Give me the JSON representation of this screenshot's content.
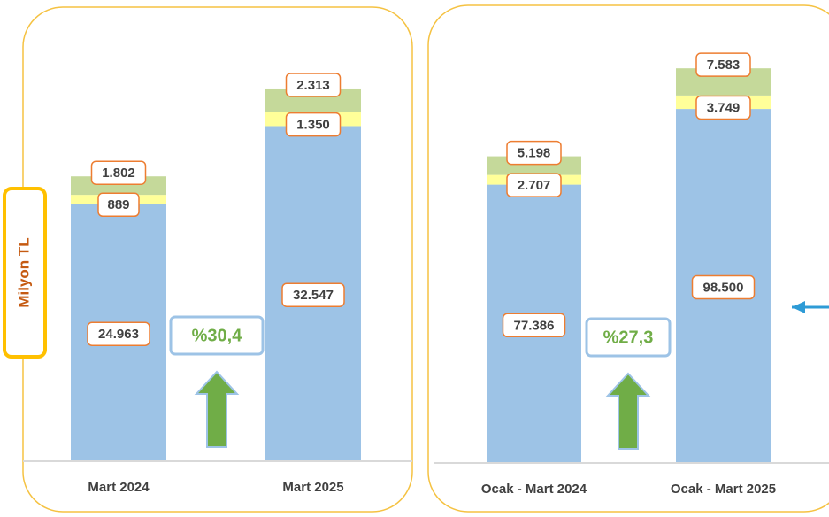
{
  "chart_data": [
    {
      "type": "bar",
      "stacked": true,
      "ylabel": "Milyon TL",
      "categories": [
        "Mart  2024",
        "Mart  2025"
      ],
      "series": [
        {
          "color": "#9dc3e6",
          "values": [
            24963,
            32547
          ]
        },
        {
          "color": "#ffff99",
          "values": [
            889,
            1350
          ]
        },
        {
          "color": "#c5d99a",
          "values": [
            1802,
            2313
          ]
        }
      ],
      "value_labels": [
        [
          "24.963",
          "32.547"
        ],
        [
          "889",
          "1.350"
        ],
        [
          "1.802",
          "2.313"
        ]
      ],
      "annotation": "%30,4",
      "ylim": [
        0,
        40000
      ]
    },
    {
      "type": "bar",
      "stacked": true,
      "categories": [
        "Ocak - Mart  2024",
        "Ocak - Mart  2025"
      ],
      "series": [
        {
          "color": "#9dc3e6",
          "values": [
            77386,
            98500
          ]
        },
        {
          "color": "#ffff99",
          "values": [
            2707,
            3749
          ]
        },
        {
          "color": "#c5d99a",
          "values": [
            5198,
            7583
          ]
        }
      ],
      "value_labels": [
        [
          "77.386",
          "98.500"
        ],
        [
          "2.707",
          "3.749"
        ],
        [
          "5.198",
          "7.583"
        ]
      ],
      "annotation": "%27,3",
      "ylim": [
        0,
        120000
      ]
    }
  ]
}
